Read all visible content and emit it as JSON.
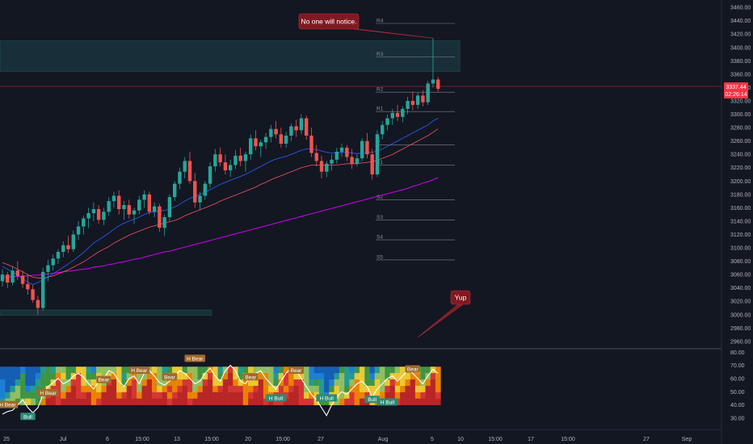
{
  "chart_data": {
    "type": "candlestick",
    "price_axis": {
      "ticks": [
        "3460.00",
        "3440.00",
        "3420.00",
        "3400.00",
        "3380.00",
        "3360.00",
        "3340.00",
        "3320.00",
        "3300.00",
        "3280.00",
        "3260.00",
        "3240.00",
        "3220.00",
        "3200.00",
        "3180.00",
        "3160.00",
        "3140.00",
        "3120.00",
        "3100.00",
        "3080.00",
        "3060.00",
        "3040.00",
        "3020.00",
        "3000.00",
        "2980.00",
        "2960.00"
      ],
      "range": [
        2955,
        3465
      ],
      "current_price": "3337.44",
      "countdown": "02:26:14"
    },
    "time_axis": [
      "25",
      "Jul",
      "6",
      "15:00",
      "13",
      "15:00",
      "20",
      "15:00",
      "27",
      "Aug",
      "5",
      "10",
      "15:00",
      "17",
      "15:00",
      "27",
      "Sep"
    ],
    "ohlc": [
      [
        3050,
        3068,
        3042,
        3060
      ],
      [
        3060,
        3064,
        3040,
        3048
      ],
      [
        3048,
        3072,
        3044,
        3066
      ],
      [
        3066,
        3080,
        3052,
        3058
      ],
      [
        3058,
        3066,
        3040,
        3046
      ],
      [
        3046,
        3060,
        3030,
        3038
      ],
      [
        3038,
        3044,
        3018,
        3022
      ],
      [
        3022,
        3028,
        3000,
        3010
      ],
      [
        3010,
        3070,
        3006,
        3064
      ],
      [
        3064,
        3082,
        3050,
        3074
      ],
      [
        3074,
        3090,
        3066,
        3084
      ],
      [
        3084,
        3098,
        3076,
        3094
      ],
      [
        3094,
        3110,
        3086,
        3104
      ],
      [
        3104,
        3118,
        3092,
        3098
      ],
      [
        3098,
        3126,
        3094,
        3120
      ],
      [
        3120,
        3140,
        3112,
        3132
      ],
      [
        3132,
        3148,
        3120,
        3144
      ],
      [
        3144,
        3160,
        3130,
        3152
      ],
      [
        3152,
        3168,
        3140,
        3158
      ],
      [
        3158,
        3164,
        3136,
        3142
      ],
      [
        3142,
        3160,
        3134,
        3154
      ],
      [
        3154,
        3176,
        3148,
        3170
      ],
      [
        3170,
        3184,
        3160,
        3178
      ],
      [
        3178,
        3186,
        3150,
        3158
      ],
      [
        3158,
        3170,
        3142,
        3164
      ],
      [
        3164,
        3172,
        3144,
        3150
      ],
      [
        3150,
        3160,
        3136,
        3156
      ],
      [
        3156,
        3178,
        3150,
        3172
      ],
      [
        3172,
        3186,
        3160,
        3180
      ],
      [
        3180,
        3184,
        3150,
        3154
      ],
      [
        3154,
        3168,
        3146,
        3162
      ],
      [
        3162,
        3166,
        3124,
        3130
      ],
      [
        3130,
        3150,
        3118,
        3146
      ],
      [
        3146,
        3180,
        3140,
        3176
      ],
      [
        3176,
        3200,
        3170,
        3196
      ],
      [
        3196,
        3220,
        3188,
        3214
      ],
      [
        3214,
        3236,
        3204,
        3230
      ],
      [
        3230,
        3244,
        3196,
        3200
      ],
      [
        3200,
        3212,
        3160,
        3168
      ],
      [
        3168,
        3184,
        3156,
        3178
      ],
      [
        3178,
        3200,
        3172,
        3196
      ],
      [
        3196,
        3228,
        3190,
        3222
      ],
      [
        3222,
        3248,
        3214,
        3240
      ],
      [
        3240,
        3250,
        3222,
        3228
      ],
      [
        3228,
        3240,
        3210,
        3216
      ],
      [
        3216,
        3232,
        3206,
        3224
      ],
      [
        3224,
        3246,
        3218,
        3238
      ],
      [
        3238,
        3250,
        3222,
        3230
      ],
      [
        3230,
        3244,
        3214,
        3240
      ],
      [
        3240,
        3270,
        3232,
        3264
      ],
      [
        3264,
        3276,
        3246,
        3252
      ],
      [
        3252,
        3262,
        3236,
        3258
      ],
      [
        3258,
        3272,
        3248,
        3266
      ],
      [
        3266,
        3284,
        3258,
        3278
      ],
      [
        3278,
        3290,
        3264,
        3270
      ],
      [
        3270,
        3280,
        3250,
        3256
      ],
      [
        3256,
        3274,
        3250,
        3268
      ],
      [
        3268,
        3286,
        3260,
        3282
      ],
      [
        3282,
        3292,
        3266,
        3276
      ],
      [
        3276,
        3300,
        3270,
        3294
      ],
      [
        3294,
        3298,
        3262,
        3268
      ],
      [
        3268,
        3280,
        3236,
        3242
      ],
      [
        3242,
        3254,
        3222,
        3230
      ],
      [
        3230,
        3238,
        3204,
        3214
      ],
      [
        3214,
        3230,
        3206,
        3226
      ],
      [
        3226,
        3240,
        3216,
        3232
      ],
      [
        3232,
        3250,
        3226,
        3244
      ],
      [
        3244,
        3256,
        3236,
        3250
      ],
      [
        3250,
        3254,
        3230,
        3236
      ],
      [
        3236,
        3248,
        3218,
        3226
      ],
      [
        3226,
        3240,
        3222,
        3234
      ],
      [
        3234,
        3264,
        3230,
        3260
      ],
      [
        3260,
        3272,
        3234,
        3240
      ],
      [
        3240,
        3248,
        3202,
        3210
      ],
      [
        3210,
        3276,
        3206,
        3270
      ],
      [
        3270,
        3290,
        3262,
        3284
      ],
      [
        3284,
        3300,
        3276,
        3294
      ],
      [
        3294,
        3308,
        3284,
        3302
      ],
      [
        3302,
        3314,
        3290,
        3296
      ],
      [
        3296,
        3312,
        3288,
        3308
      ],
      [
        3308,
        3326,
        3300,
        3320
      ],
      [
        3320,
        3334,
        3306,
        3314
      ],
      [
        3314,
        3332,
        3308,
        3328
      ],
      [
        3328,
        3336,
        3312,
        3318
      ],
      [
        3318,
        3350,
        3314,
        3346
      ],
      [
        3346,
        3414,
        3340,
        3352
      ],
      [
        3352,
        3356,
        3334,
        3338
      ]
    ],
    "ma_fast": [
      3072,
      3068,
      3064,
      3059,
      3054,
      3049,
      3045,
      3048,
      3052,
      3056,
      3061,
      3066,
      3071,
      3076,
      3081,
      3087,
      3093,
      3100,
      3107,
      3112,
      3117,
      3122,
      3128,
      3133,
      3137,
      3140,
      3143,
      3146,
      3150,
      3153,
      3154,
      3155,
      3156,
      3158,
      3161,
      3165,
      3170,
      3174,
      3177,
      3180,
      3183,
      3187,
      3191,
      3195,
      3198,
      3201,
      3204,
      3207,
      3210,
      3214,
      3218,
      3222,
      3226,
      3230,
      3233,
      3235,
      3237,
      3240,
      3243,
      3246,
      3248,
      3248,
      3247,
      3245,
      3243,
      3242,
      3242,
      3243,
      3243,
      3242,
      3241,
      3242,
      3243,
      3243,
      3245,
      3248,
      3252,
      3256,
      3260,
      3264,
      3268,
      3272,
      3276,
      3280,
      3284,
      3290,
      3294
    ],
    "ma_mid": [
      3078,
      3075,
      3072,
      3068,
      3064,
      3060,
      3056,
      3055,
      3055,
      3056,
      3058,
      3061,
      3064,
      3067,
      3071,
      3075,
      3079,
      3084,
      3089,
      3094,
      3098,
      3102,
      3107,
      3111,
      3115,
      3119,
      3122,
      3125,
      3128,
      3131,
      3133,
      3135,
      3137,
      3139,
      3141,
      3144,
      3148,
      3151,
      3154,
      3157,
      3160,
      3163,
      3166,
      3170,
      3173,
      3176,
      3179,
      3182,
      3185,
      3188,
      3191,
      3195,
      3198,
      3202,
      3205,
      3208,
      3211,
      3214,
      3217,
      3220,
      3222,
      3224,
      3224,
      3224,
      3224,
      3224,
      3224,
      3225,
      3226,
      3226,
      3226,
      3227,
      3228,
      3229,
      3231,
      3234,
      3237,
      3240,
      3244,
      3248,
      3252,
      3256,
      3260,
      3264,
      3268,
      3273,
      3278
    ],
    "ma_slow": [
      3056,
      3056,
      3057,
      3057,
      3058,
      3058,
      3059,
      3059,
      3060,
      3061,
      3062,
      3063,
      3064,
      3065,
      3066,
      3067,
      3068,
      3069,
      3071,
      3072,
      3073,
      3075,
      3076,
      3078,
      3079,
      3081,
      3083,
      3084,
      3086,
      3088,
      3090,
      3092,
      3094,
      3095,
      3097,
      3099,
      3101,
      3103,
      3105,
      3107,
      3109,
      3111,
      3113,
      3115,
      3117,
      3119,
      3121,
      3123,
      3125,
      3127,
      3129,
      3131,
      3133,
      3135,
      3137,
      3139,
      3141,
      3143,
      3145,
      3147,
      3149,
      3151,
      3153,
      3155,
      3157,
      3159,
      3161,
      3163,
      3165,
      3167,
      3169,
      3171,
      3173,
      3175,
      3177,
      3179,
      3181,
      3183,
      3185,
      3187,
      3189,
      3192,
      3194,
      3197,
      3199,
      3202,
      3205
    ],
    "pivot_levels": [
      {
        "label": "R4",
        "value": 3436
      },
      {
        "label": "R3",
        "value": 3386
      },
      {
        "label": "R2",
        "value": 3333
      },
      {
        "label": "R1",
        "value": 3304
      },
      {
        "label": "P",
        "value": 3254
      },
      {
        "label": "S1",
        "value": 3224
      },
      {
        "label": "S2",
        "value": 3172
      },
      {
        "label": "S3",
        "value": 3142
      },
      {
        "label": "S4",
        "value": 3112
      },
      {
        "label": "S5",
        "value": 3082
      }
    ],
    "zones": [
      {
        "from": 3364,
        "to": 3410,
        "start": 0,
        "end": 86
      },
      {
        "from": 2999,
        "to": 3007,
        "start": 0,
        "end": 37
      }
    ],
    "annotations": [
      {
        "text": "No one will notice.",
        "target": [
          85,
          3414
        ]
      },
      {
        "text": "Yup",
        "target": [
          82,
          2966
        ]
      }
    ],
    "oscillator": {
      "axis_ticks": [
        "80.00",
        "70.00",
        "60.00",
        "50.00",
        "40.00",
        "30.00"
      ],
      "range": [
        22,
        82
      ],
      "values": [
        33,
        35,
        36,
        40,
        44,
        38,
        34,
        38,
        48,
        54,
        57,
        60,
        56,
        58,
        62,
        64,
        61,
        56,
        52,
        58,
        60,
        66,
        64,
        58,
        54,
        60,
        62,
        56,
        64,
        66,
        62,
        57,
        55,
        58,
        62,
        66,
        64,
        60,
        56,
        58,
        64,
        68,
        62,
        58,
        66,
        70,
        66,
        58,
        56,
        62,
        64,
        66,
        60,
        56,
        52,
        58,
        64,
        68,
        66,
        60,
        54,
        48,
        44,
        38,
        32,
        40,
        46,
        50,
        48,
        52,
        56,
        58,
        54,
        46,
        52,
        56,
        60,
        62,
        58,
        62,
        66,
        64,
        60,
        56,
        62,
        67,
        64
      ],
      "labels": [
        {
          "text": "H Bear",
          "i": 1,
          "v": 40,
          "kind": "bear"
        },
        {
          "text": "Bull",
          "i": 5,
          "v": 31,
          "kind": "bull"
        },
        {
          "text": "H Bear",
          "i": 9,
          "v": 49,
          "kind": "bear"
        },
        {
          "text": "Bear",
          "i": 20,
          "v": 59,
          "kind": "bear"
        },
        {
          "text": "H Bear",
          "i": 27,
          "v": 66,
          "kind": "bear"
        },
        {
          "text": "Bear",
          "i": 33,
          "v": 61,
          "kind": "bear"
        },
        {
          "text": "H Bear",
          "i": 38,
          "v": 75,
          "kind": "bear"
        },
        {
          "text": "Bear",
          "i": 49,
          "v": 61,
          "kind": "bear"
        },
        {
          "text": "H Bull",
          "i": 54,
          "v": 45,
          "kind": "bull"
        },
        {
          "text": "Bear",
          "i": 58,
          "v": 66,
          "kind": "bear"
        },
        {
          "text": "H Bull",
          "i": 64,
          "v": 45,
          "kind": "bull"
        },
        {
          "text": "Bull",
          "i": 73,
          "v": 44,
          "kind": "bull"
        },
        {
          "text": "H Bull",
          "i": 76,
          "v": 42,
          "kind": "bull"
        },
        {
          "text": "Bear",
          "i": 81,
          "v": 67,
          "kind": "bear"
        }
      ]
    }
  },
  "colors": {
    "background": "#131722",
    "up": "#26a69a",
    "down": "#ef5350",
    "ma_fast": "#2962ff",
    "ma_mid": "#f7525f",
    "ma_slow": "#d500f9",
    "zone": "#1b3a43",
    "grid": "#2a2e39",
    "level": "#b2b5be",
    "price_tag": "#f23645",
    "callout": "#801922",
    "bear_tag": "#a06a2b",
    "bull_tag": "#2e8b76"
  }
}
